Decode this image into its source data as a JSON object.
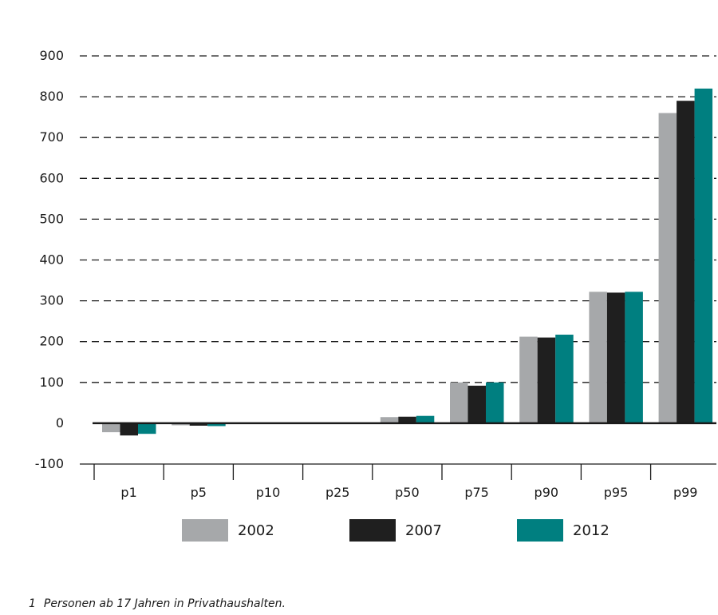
{
  "chart_data": {
    "type": "bar",
    "categories": [
      "p1",
      "p5",
      "p10",
      "p25",
      "p50",
      "p75",
      "p90",
      "p95",
      "p99"
    ],
    "series": [
      {
        "name": "2002",
        "color": "#a6a8aa",
        "values": [
          -22,
          -5,
          0,
          0,
          15,
          100,
          212,
          322,
          760
        ]
      },
      {
        "name": "2007",
        "color": "#1f1f1f",
        "values": [
          -30,
          -6,
          0,
          0,
          16,
          92,
          210,
          320,
          790
        ]
      },
      {
        "name": "2012",
        "color": "#007f80",
        "values": [
          -26,
          -7,
          0,
          0,
          18,
          100,
          217,
          322,
          820
        ]
      }
    ],
    "ylim": [
      -100,
      900
    ],
    "yticks": [
      -100,
      0,
      100,
      200,
      300,
      400,
      500,
      600,
      700,
      800,
      900
    ],
    "grid": "dashed horizontal",
    "legend_position": "bottom",
    "xlabel": "",
    "ylabel": ""
  },
  "legend": {
    "items": [
      {
        "label": "2002",
        "color": "#a6a8aa"
      },
      {
        "label": "2007",
        "color": "#1f1f1f"
      },
      {
        "label": "2012",
        "color": "#007f80"
      }
    ]
  },
  "footnote": {
    "marker": "1",
    "text": "Personen ab 17 Jahren in Privathaushalten."
  }
}
